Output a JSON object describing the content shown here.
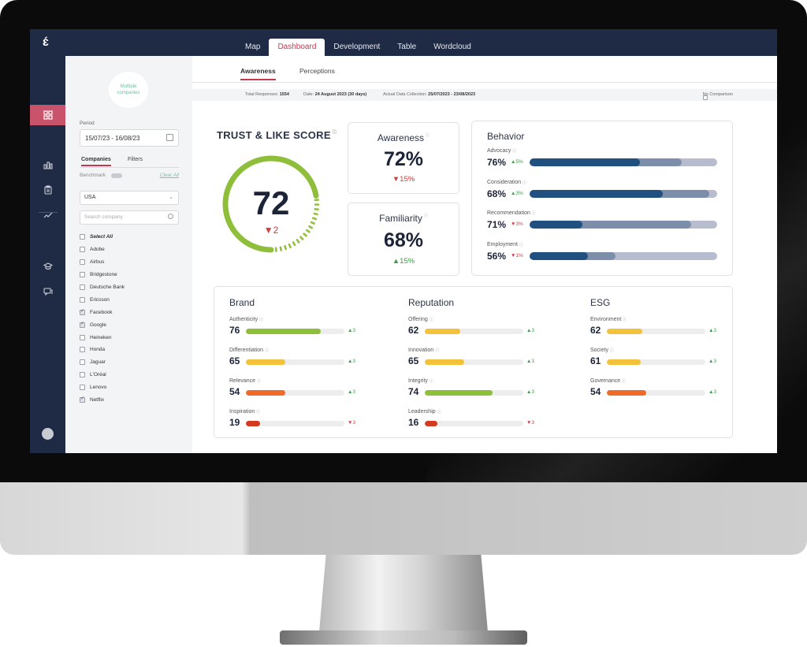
{
  "app": {
    "logo": "ɛ́"
  },
  "main_tabs": [
    "Map",
    "Dashboard",
    "Development",
    "Table",
    "Wordcloud"
  ],
  "active_main_tab": "Dashboard",
  "rail_icons": [
    "grid-icon",
    "bar-chart-icon",
    "clipboard-icon",
    "trend-icon",
    "graduation-icon",
    "chat-icon"
  ],
  "panel": {
    "badge": "Multiple companies",
    "period_label": "Period",
    "period_value": "15/07/23 - 16/08/23",
    "tab_companies": "Companies",
    "tab_filters": "Filters",
    "benchmark_label": "Benchmark",
    "clear_all": "Clear All",
    "country": "USA",
    "search_placeholder": "Search company",
    "select_all": "Select All",
    "companies": [
      {
        "name": "Adobe",
        "checked": false
      },
      {
        "name": "Airbus",
        "checked": false
      },
      {
        "name": "Bridgestone",
        "checked": false
      },
      {
        "name": "Deutsche Bank",
        "checked": false
      },
      {
        "name": "Ericsson",
        "checked": false
      },
      {
        "name": "Facebook",
        "checked": true
      },
      {
        "name": "Google",
        "checked": true
      },
      {
        "name": "Heineken",
        "checked": false
      },
      {
        "name": "Honda",
        "checked": false
      },
      {
        "name": "Jaguar",
        "checked": false
      },
      {
        "name": "L'Oréal",
        "checked": false
      },
      {
        "name": "Lenovo",
        "checked": false
      },
      {
        "name": "Netflix",
        "checked": true
      }
    ]
  },
  "sub_tabs": {
    "awareness": "Awareness",
    "perceptions": "Perceptions"
  },
  "info": {
    "responses_label": "Total Responses:",
    "responses_value": "1554",
    "date_label": "Date:",
    "date_value": "24 August 2023 (30 days)",
    "collection_label": "Actual Data Collection:",
    "collection_value": "25/07/2023 - 23/08/2023",
    "no_comparison": "No Comparison"
  },
  "trust": {
    "title": "TRUST & LIKE SCORE",
    "score": "72",
    "score_value": 72,
    "delta": "▼2"
  },
  "awareness_card": {
    "title": "Awareness",
    "value": "72%",
    "delta": "▼15%"
  },
  "familiarity_card": {
    "title": "Familiarity",
    "value": "68%",
    "delta": "▲15%"
  },
  "behavior": {
    "title": "Behavior",
    "rows": [
      {
        "label": "Advocacy",
        "value": "76%",
        "delta": "▲5%",
        "dir": "up",
        "seg1": 0.59,
        "seg2": 0.81
      },
      {
        "label": "Consideration",
        "value": "68%",
        "delta": "▲3%",
        "dir": "up",
        "seg1": 0.71,
        "seg2": 0.96
      },
      {
        "label": "Recommendation",
        "value": "71%",
        "delta": "▼3%",
        "dir": "down",
        "seg1": 0.28,
        "seg2": 0.86
      },
      {
        "label": "Employment",
        "value": "56%",
        "delta": "▼1%",
        "dir": "down",
        "seg1": 0.31,
        "seg2": 0.46
      }
    ]
  },
  "colors": {
    "red": "#d33a1f",
    "orange": "#ee6b2a",
    "yellow": "#f4c23a",
    "green": "#8fbf3a",
    "accent": "#c8384e"
  },
  "groups": [
    {
      "title": "Brand",
      "metrics": [
        {
          "label": "Authenticity",
          "value": "76",
          "delta": "▲3",
          "dir": "up",
          "color": "green",
          "fill": 0.76
        },
        {
          "label": "Differentiation",
          "value": "65",
          "delta": "▲3",
          "dir": "up",
          "color": "yellow",
          "fill": 0.4
        },
        {
          "label": "Relevance",
          "value": "54",
          "delta": "▲3",
          "dir": "up",
          "color": "orange",
          "fill": 0.4
        },
        {
          "label": "Inspiration",
          "value": "19",
          "delta": "▼3",
          "dir": "down",
          "color": "red",
          "fill": 0.14
        }
      ]
    },
    {
      "title": "Reputation",
      "metrics": [
        {
          "label": "Offering",
          "value": "62",
          "delta": "▲3",
          "dir": "up",
          "color": "yellow",
          "fill": 0.36
        },
        {
          "label": "Innovation",
          "value": "65",
          "delta": "▲3",
          "dir": "up",
          "color": "yellow",
          "fill": 0.4
        },
        {
          "label": "Integrity",
          "value": "74",
          "delta": "▲3",
          "dir": "up",
          "color": "green",
          "fill": 0.69
        },
        {
          "label": "Leadership",
          "value": "16",
          "delta": "▼3",
          "dir": "down",
          "color": "red",
          "fill": 0.13
        }
      ]
    },
    {
      "title": "ESG",
      "metrics": [
        {
          "label": "Environment",
          "value": "62",
          "delta": "▲3",
          "dir": "up",
          "color": "yellow",
          "fill": 0.36
        },
        {
          "label": "Society",
          "value": "61",
          "delta": "▲3",
          "dir": "up",
          "color": "yellow",
          "fill": 0.34
        },
        {
          "label": "Governance",
          "value": "54",
          "delta": "▲3",
          "dir": "up",
          "color": "orange",
          "fill": 0.4
        }
      ]
    }
  ]
}
